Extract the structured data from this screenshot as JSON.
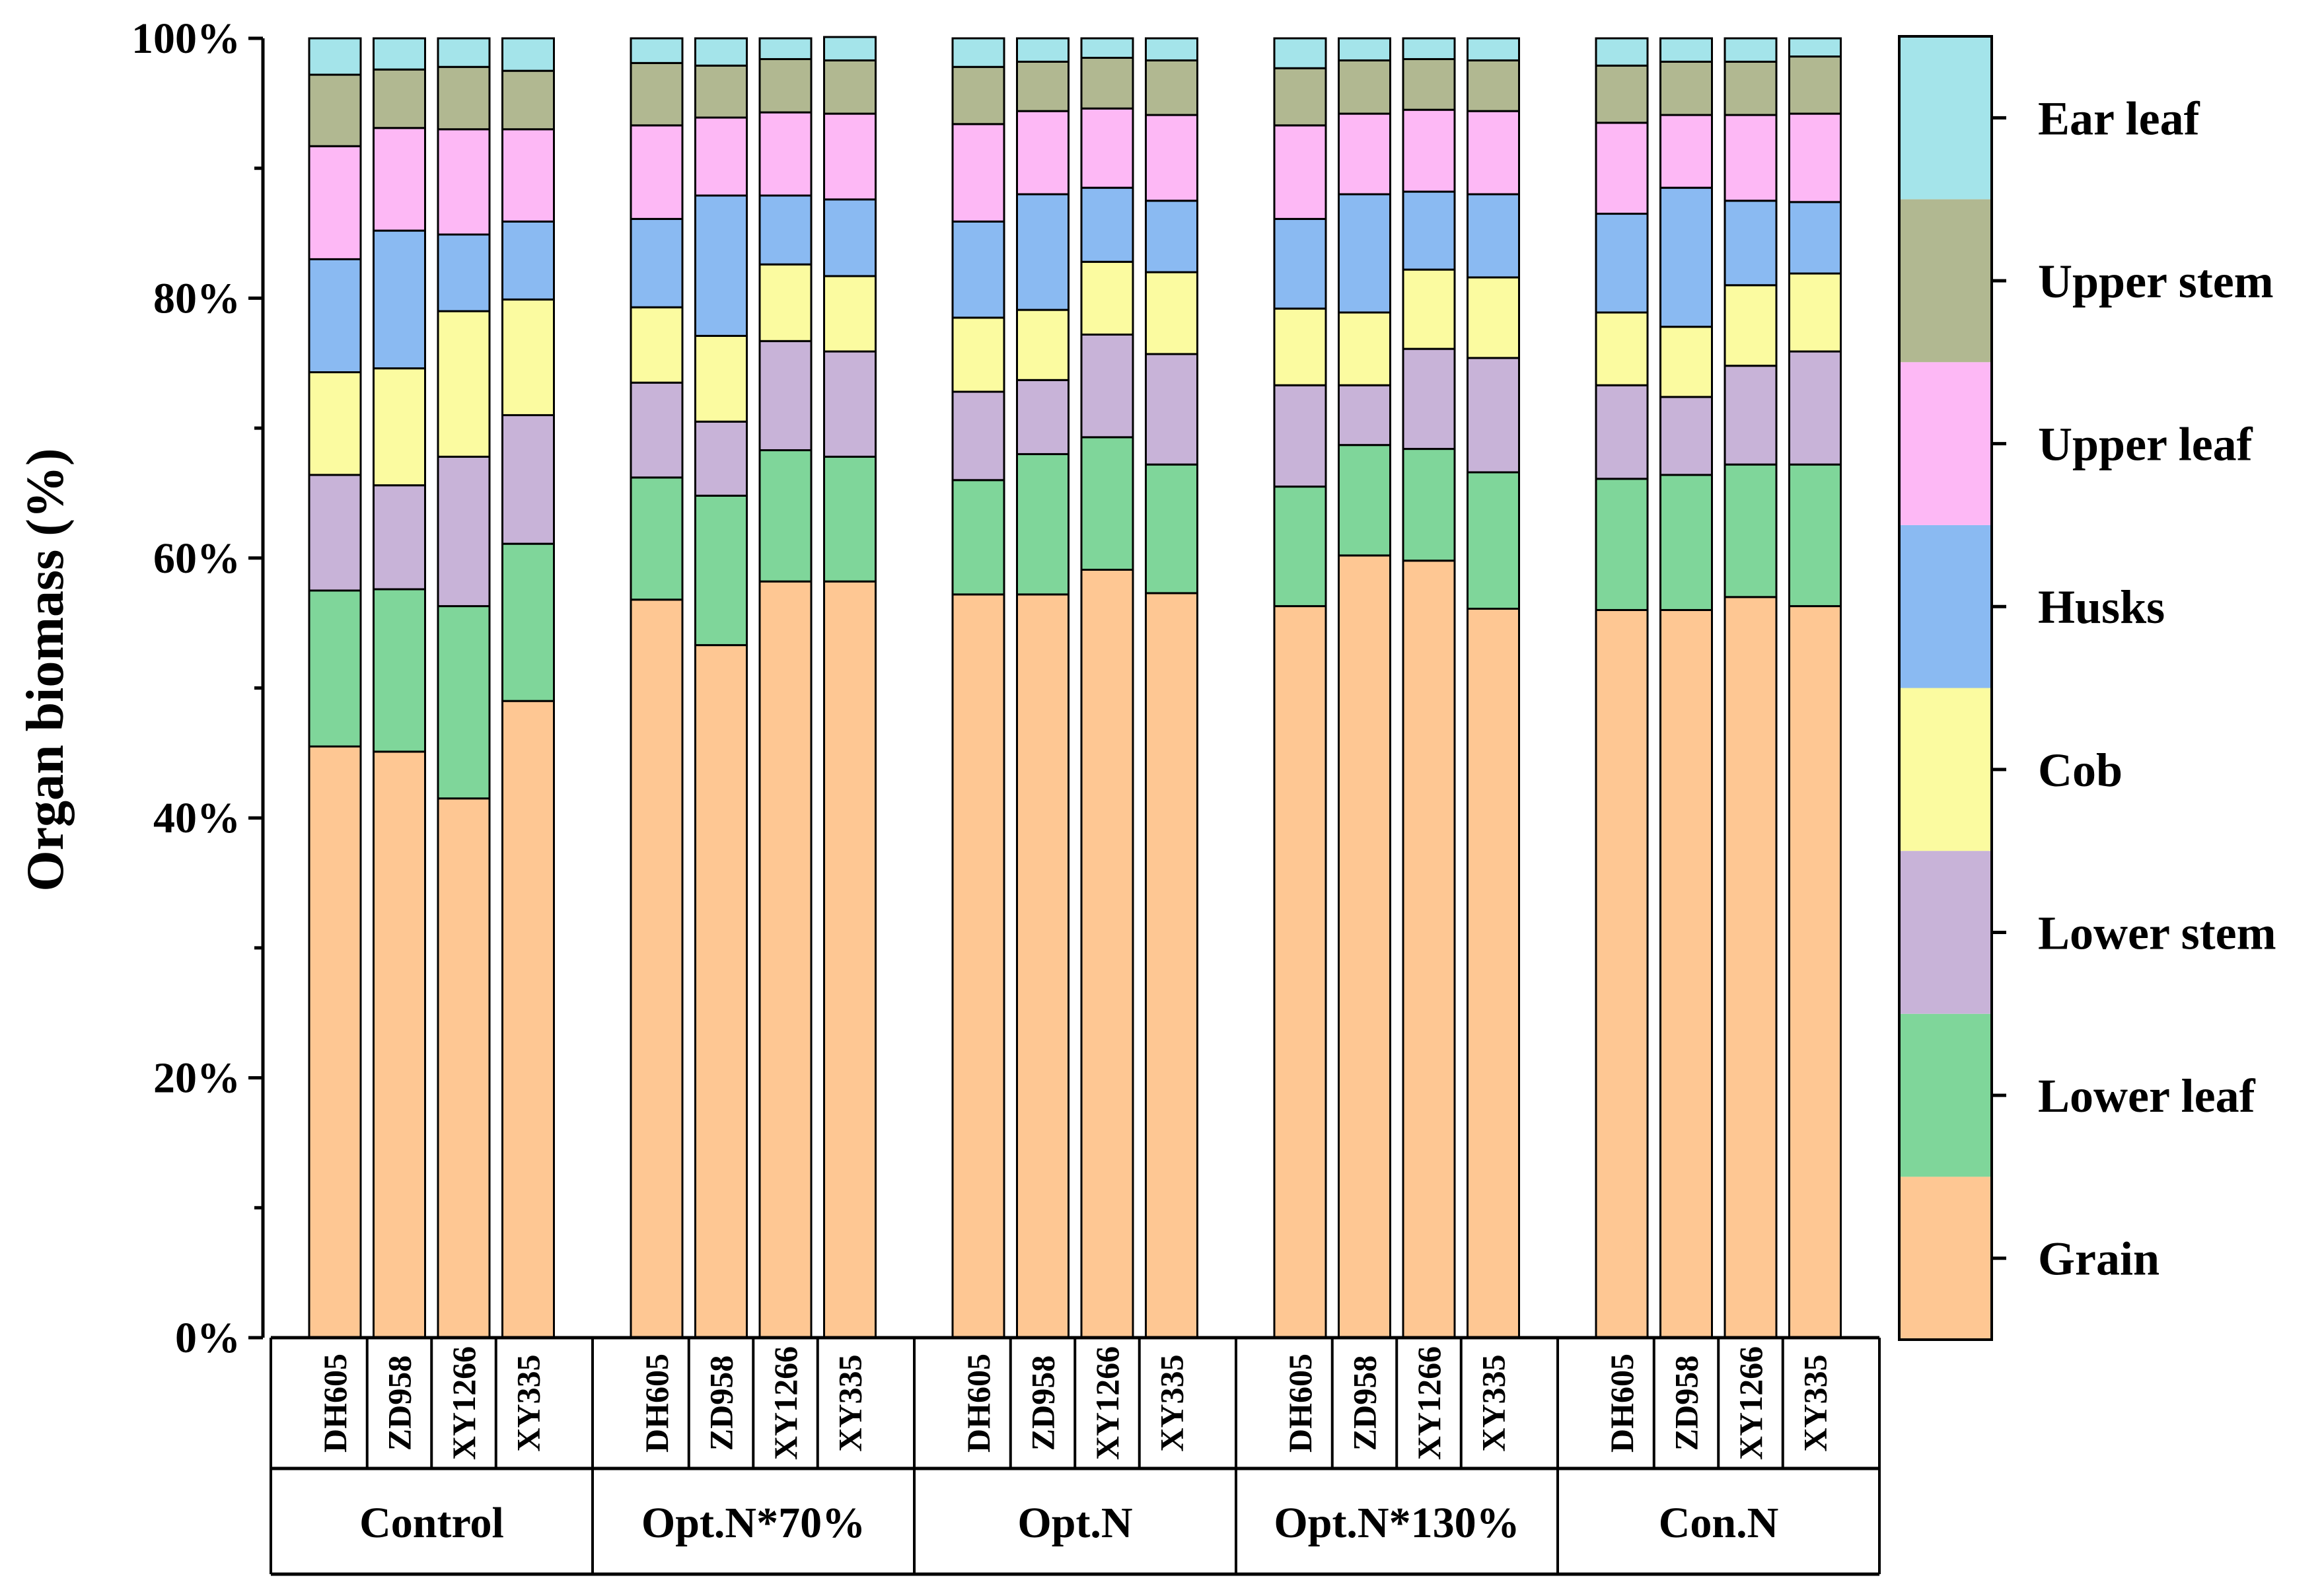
{
  "chart_data": {
    "type": "bar",
    "stacked": true,
    "ylabel": "Organ biomass (%)",
    "ylim": [
      0,
      100
    ],
    "y_ticks": [
      "0%",
      "20%",
      "40%",
      "60%",
      "80%",
      "100%"
    ],
    "groups": [
      {
        "name": "Control",
        "cultivars": [
          "DH605",
          "ZD958",
          "XY1266",
          "XY335"
        ]
      },
      {
        "name": "Opt.N*70%",
        "cultivars": [
          "DH605",
          "ZD958",
          "XY1266",
          "XY335"
        ]
      },
      {
        "name": "Opt.N",
        "cultivars": [
          "DH605",
          "ZD958",
          "XY1266",
          "XY335"
        ]
      },
      {
        "name": "Opt.N*130%",
        "cultivars": [
          "DH605",
          "ZD958",
          "XY1266",
          "XY335"
        ]
      },
      {
        "name": "Con.N",
        "cultivars": [
          "DH605",
          "ZD958",
          "XY1266",
          "XY335"
        ]
      }
    ],
    "categories": [
      "Control DH605",
      "Control ZD958",
      "Control XY1266",
      "Control XY335",
      "Opt.N*70% DH605",
      "Opt.N*70% ZD958",
      "Opt.N*70% XY1266",
      "Opt.N*70% XY335",
      "Opt.N DH605",
      "Opt.N ZD958",
      "Opt.N XY1266",
      "Opt.N XY335",
      "Opt.N*130% DH605",
      "Opt.N*130% ZD958",
      "Opt.N*130% XY1266",
      "Opt.N*130% XY335",
      "Con.N DH605",
      "Con.N ZD958",
      "Con.N XY1266",
      "Con.N XY335"
    ],
    "series": [
      {
        "name": "Grain",
        "color": "#FEC793",
        "values": [
          45.5,
          45.1,
          41.5,
          49.0,
          56.8,
          53.3,
          58.2,
          58.2,
          57.2,
          57.2,
          59.1,
          57.3,
          56.3,
          60.2,
          59.8,
          56.1,
          56.0,
          56.0,
          57.0,
          56.3
        ]
      },
      {
        "name": "Lower leaf",
        "color": "#7FD69A",
        "values": [
          12.0,
          12.5,
          14.8,
          12.1,
          9.4,
          11.5,
          10.1,
          9.6,
          8.8,
          10.8,
          10.2,
          9.9,
          9.2,
          8.5,
          8.6,
          10.5,
          10.1,
          10.4,
          10.2,
          10.9
        ]
      },
      {
        "name": "Lower stem",
        "color": "#C8B3D8",
        "values": [
          8.9,
          8.0,
          11.5,
          9.9,
          7.3,
          5.7,
          8.4,
          8.1,
          6.8,
          5.7,
          7.9,
          8.5,
          7.8,
          4.6,
          7.7,
          8.8,
          7.2,
          6.0,
          7.6,
          8.7
        ]
      },
      {
        "name": "Cob",
        "color": "#FBFBA0",
        "values": [
          7.9,
          9.0,
          11.2,
          8.9,
          5.8,
          6.6,
          5.9,
          5.8,
          5.7,
          5.4,
          5.6,
          6.3,
          5.9,
          5.6,
          6.1,
          6.2,
          5.6,
          5.4,
          6.2,
          6.0
        ]
      },
      {
        "name": "Husks",
        "color": "#8ABAF2",
        "values": [
          8.7,
          10.6,
          5.9,
          6.0,
          6.8,
          10.8,
          5.3,
          5.9,
          7.4,
          8.9,
          5.7,
          5.5,
          6.9,
          9.1,
          6.0,
          6.4,
          7.6,
          10.7,
          6.5,
          5.5
        ]
      },
      {
        "name": "Upper leaf",
        "color": "#FDB8F5",
        "values": [
          8.7,
          7.9,
          8.1,
          7.1,
          7.2,
          6.0,
          6.4,
          6.6,
          7.5,
          6.4,
          6.1,
          6.6,
          7.2,
          6.2,
          6.3,
          6.4,
          7.0,
          5.6,
          6.6,
          6.8
        ]
      },
      {
        "name": "Upper stem",
        "color": "#B1B891",
        "values": [
          5.5,
          4.5,
          4.8,
          4.5,
          4.8,
          4.0,
          4.1,
          4.1,
          4.4,
          3.8,
          3.9,
          4.2,
          4.4,
          4.1,
          3.9,
          3.9,
          4.4,
          4.1,
          4.1,
          4.4
        ]
      },
      {
        "name": "Ear leaf",
        "color": "#A4E4EA",
        "values": [
          2.8,
          2.4,
          2.2,
          2.5,
          1.9,
          2.1,
          1.6,
          1.8,
          2.2,
          1.8,
          1.5,
          1.7,
          2.3,
          1.7,
          1.6,
          1.7,
          2.1,
          1.8,
          1.8,
          1.4
        ]
      }
    ],
    "legend_position": "right",
    "grid": false
  }
}
